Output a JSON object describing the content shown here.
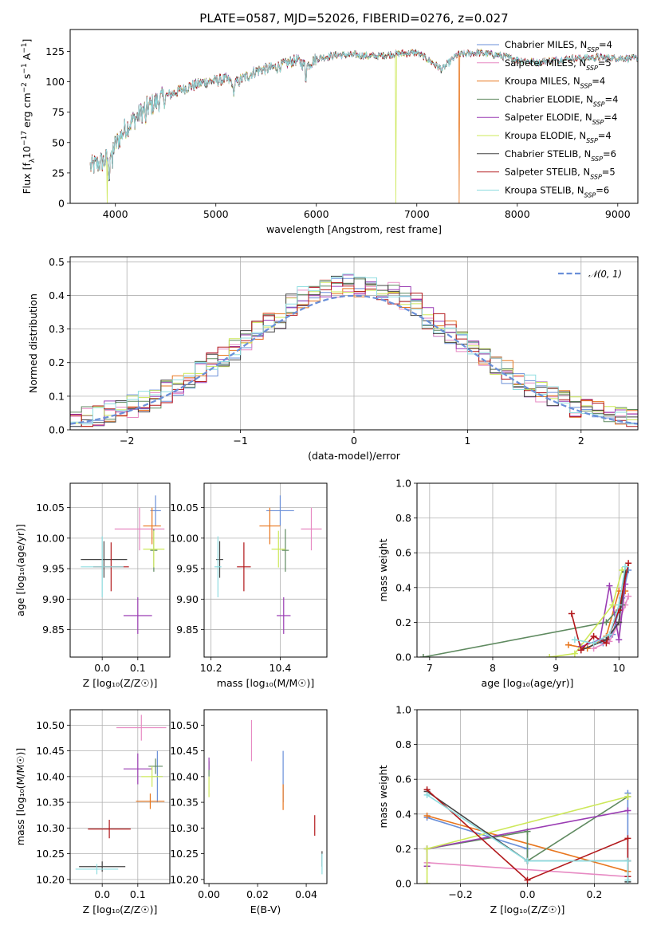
{
  "colors": {
    "Chabrier MILES": "#6a8fd8",
    "Salpeter MILES": "#e78ac3",
    "Kroupa MILES": "#e8761e",
    "Chabrier ELODIE": "#5f8a60",
    "Salpeter ELODIE": "#9a3cb3",
    "Kroupa ELODIE": "#cde85a",
    "Chabrier STELIB": "#444444",
    "Salpeter STELIB": "#b2181b",
    "Kroupa STELIB": "#8fdde0"
  },
  "chart_data": [
    {
      "id": "spectrum",
      "type": "line",
      "title": "PLATE=0587, MJD=52026, FIBERID=0276, z=0.027",
      "xlabel": "wavelength [Angstrom, rest frame]",
      "ylabel_parts": [
        "Flux [f",
        "λ",
        "10",
        "−17",
        " erg cm",
        "−2",
        " s",
        "−1",
        " A",
        "−1",
        "]"
      ],
      "xlim": [
        3550,
        9200
      ],
      "ylim": [
        0,
        143
      ],
      "xticks": [
        4000,
        5000,
        6000,
        7000,
        8000,
        9000
      ],
      "yticks": [
        0,
        25,
        50,
        75,
        100,
        125
      ],
      "grid": false,
      "legend_loc": "upper right",
      "legend": [
        {
          "name": "Chabrier MILES",
          "n": "4"
        },
        {
          "name": "Salpeter MILES",
          "n": "5"
        },
        {
          "name": "Kroupa MILES",
          "n": "4"
        },
        {
          "name": "Chabrier ELODIE",
          "n": "4"
        },
        {
          "name": "Salpeter ELODIE",
          "n": "4"
        },
        {
          "name": "Kroupa ELODIE",
          "n": "4"
        },
        {
          "name": "Chabrier STELIB",
          "n": "6"
        },
        {
          "name": "Salpeter STELIB",
          "n": "5"
        },
        {
          "name": "Kroupa STELIB",
          "n": "6"
        }
      ],
      "legend_sub": "SSP",
      "legend_prefix": "N",
      "continuum": [
        [
          3750,
          30
        ],
        [
          3900,
          35
        ],
        [
          4000,
          48
        ],
        [
          4100,
          62
        ],
        [
          4300,
          78
        ],
        [
          4500,
          88
        ],
        [
          4700,
          95
        ],
        [
          4900,
          100
        ],
        [
          5100,
          102
        ],
        [
          5200,
          99
        ],
        [
          5400,
          109
        ],
        [
          5600,
          112
        ],
        [
          5800,
          118
        ],
        [
          5900,
          113
        ],
        [
          6000,
          119
        ],
        [
          6200,
          122
        ],
        [
          6400,
          122
        ],
        [
          6600,
          121
        ],
        [
          6800,
          123
        ],
        [
          7000,
          124
        ],
        [
          7100,
          119
        ],
        [
          7250,
          110
        ],
        [
          7400,
          122
        ],
        [
          7600,
          124
        ],
        [
          7800,
          122
        ],
        [
          8000,
          118
        ],
        [
          8200,
          116
        ],
        [
          8500,
          119
        ],
        [
          8800,
          120
        ],
        [
          9200,
          119
        ]
      ],
      "drops": [
        {
          "series": "Kroupa ELODIE",
          "x": 3920
        },
        {
          "series": "Kroupa ELODIE",
          "x": 6790
        },
        {
          "series": "Kroupa MILES",
          "x": 7420
        }
      ]
    },
    {
      "id": "residuals",
      "type": "histogram",
      "xlabel": "(data-model)/error",
      "ylabel": "Normed distribution",
      "xlim": [
        -2.5,
        2.5
      ],
      "ylim": [
        0,
        0.515
      ],
      "xticks": [
        -2,
        -1,
        0,
        1,
        2
      ],
      "yticks": [
        0.0,
        0.1,
        0.2,
        0.3,
        0.4,
        0.5
      ],
      "grid": true,
      "legend_loc": "upper right",
      "reference": {
        "name": "𝒩(0, 1)",
        "mean": 0,
        "sigma": 1,
        "color": "#6a8fd8"
      },
      "bins": [
        -2.5,
        2.5,
        50
      ]
    },
    {
      "id": "age-vs-Z",
      "type": "errorbar",
      "xlabel": "Z [log₁₀(Z/Z☉)]",
      "ylabel": "age  [log₁₀(age/yr)]",
      "xlim": [
        -0.09,
        0.19
      ],
      "ylim": [
        9.805,
        10.09
      ],
      "xticks": [
        0.0,
        0.1
      ],
      "yticks": [
        9.85,
        9.9,
        9.95,
        10.0,
        10.05
      ],
      "grid": true,
      "points": [
        {
          "series": "Chabrier MILES",
          "x": 0.15,
          "xerr": 0.015,
          "y": 10.045,
          "yerr": 0.025
        },
        {
          "series": "Salpeter MILES",
          "x": 0.105,
          "xerr": 0.07,
          "y": 10.015,
          "yerr": 0.035
        },
        {
          "series": "Kroupa MILES",
          "x": 0.14,
          "xerr": 0.025,
          "y": 10.02,
          "yerr": 0.03
        },
        {
          "series": "Chabrier ELODIE",
          "x": 0.145,
          "xerr": 0.01,
          "y": 9.98,
          "yerr": 0.035
        },
        {
          "series": "Salpeter ELODIE",
          "x": 0.1,
          "xerr": 0.04,
          "y": 9.873,
          "yerr": 0.03
        },
        {
          "series": "Kroupa ELODIE",
          "x": 0.145,
          "xerr": 0.03,
          "y": 9.982,
          "yerr": 0.03
        },
        {
          "series": "Chabrier STELIB",
          "x": 0.005,
          "xerr": 0.065,
          "y": 9.965,
          "yerr": 0.03
        },
        {
          "series": "Salpeter STELIB",
          "x": 0.025,
          "xerr": 0.05,
          "y": 9.953,
          "yerr": 0.04
        },
        {
          "series": "Kroupa STELIB",
          "x": 0.0,
          "xerr": 0.06,
          "y": 9.953,
          "yerr": 0.05
        }
      ]
    },
    {
      "id": "age-vs-mass",
      "type": "errorbar",
      "xlabel": "mass [log₁₀(M/M☉)]",
      "ylabel": "",
      "xlim": [
        10.18,
        10.535
      ],
      "ylim": [
        9.805,
        10.09
      ],
      "xticks": [
        10.2,
        10.4
      ],
      "yticks": [
        9.85,
        9.9,
        9.95,
        10.0,
        10.05
      ],
      "grid": true,
      "points": [
        {
          "series": "Chabrier MILES",
          "x": 10.4,
          "xerr": 0.04,
          "y": 10.045,
          "yerr": 0.025
        },
        {
          "series": "Salpeter MILES",
          "x": 10.49,
          "xerr": 0.03,
          "y": 10.015,
          "yerr": 0.035
        },
        {
          "series": "Kroupa MILES",
          "x": 10.37,
          "xerr": 0.03,
          "y": 10.02,
          "yerr": 0.03
        },
        {
          "series": "Chabrier ELODIE",
          "x": 10.415,
          "xerr": 0.01,
          "y": 9.98,
          "yerr": 0.035
        },
        {
          "series": "Salpeter ELODIE",
          "x": 10.41,
          "xerr": 0.02,
          "y": 9.873,
          "yerr": 0.03
        },
        {
          "series": "Kroupa ELODIE",
          "x": 10.395,
          "xerr": 0.02,
          "y": 9.982,
          "yerr": 0.03
        },
        {
          "series": "Chabrier STELIB",
          "x": 10.225,
          "xerr": 0.01,
          "y": 9.965,
          "yerr": 0.03
        },
        {
          "series": "Salpeter STELIB",
          "x": 10.295,
          "xerr": 0.02,
          "y": 9.953,
          "yerr": 0.04
        },
        {
          "series": "Kroupa STELIB",
          "x": 10.22,
          "xerr": 0.01,
          "y": 9.953,
          "yerr": 0.05
        }
      ]
    },
    {
      "id": "mass-weight-vs-age",
      "type": "line",
      "xlabel": "age  [log₁₀(age/yr)]",
      "ylabel": "mass weight",
      "xlim": [
        6.8,
        10.3
      ],
      "ylim": [
        0,
        1
      ],
      "xticks": [
        7,
        8,
        9,
        10
      ],
      "yticks": [
        0.0,
        0.2,
        0.4,
        0.6,
        0.8,
        1.0
      ],
      "grid": true,
      "series": [
        {
          "name": "Chabrier MILES",
          "x": [
            9.75,
            9.9,
            10.05,
            10.15
          ],
          "y": [
            0.08,
            0.13,
            0.34,
            0.5
          ]
        },
        {
          "name": "Salpeter MILES",
          "x": [
            9.6,
            9.85,
            10.0,
            10.1,
            10.15
          ],
          "y": [
            0.05,
            0.09,
            0.2,
            0.3,
            0.35
          ]
        },
        {
          "name": "Kroupa MILES",
          "x": [
            9.2,
            9.5,
            9.8,
            10.0,
            10.1
          ],
          "y": [
            0.07,
            0.05,
            0.12,
            0.38,
            0.38
          ]
        },
        {
          "name": "Chabrier ELODIE",
          "x": [
            6.9,
            9.8,
            10.05,
            10.1
          ],
          "y": [
            0.0,
            0.2,
            0.3,
            0.5
          ]
        },
        {
          "name": "Salpeter ELODIE",
          "x": [
            9.4,
            9.7,
            9.85,
            10.0,
            10.1
          ],
          "y": [
            0.06,
            0.1,
            0.41,
            0.1,
            0.42
          ]
        },
        {
          "name": "Kroupa ELODIE",
          "x": [
            8.9,
            9.3,
            9.9,
            10.05
          ],
          "y": [
            0.0,
            0.02,
            0.3,
            0.5
          ]
        },
        {
          "name": "Chabrier STELIB",
          "x": [
            9.4,
            9.8,
            10.0,
            10.1
          ],
          "y": [
            0.04,
            0.1,
            0.2,
            0.49
          ]
        },
        {
          "name": "Salpeter STELIB",
          "x": [
            9.25,
            9.4,
            9.6,
            9.8,
            10.0,
            10.15
          ],
          "y": [
            0.25,
            0.04,
            0.12,
            0.08,
            0.27,
            0.54
          ]
        },
        {
          "name": "Kroupa STELIB",
          "x": [
            9.3,
            9.6,
            9.85,
            10.0,
            10.1
          ],
          "y": [
            0.1,
            0.08,
            0.13,
            0.3,
            0.52
          ]
        }
      ]
    },
    {
      "id": "mass-vs-Z",
      "type": "errorbar",
      "xlabel": "Z [log₁₀(Z/Z☉)]",
      "ylabel": "mass [log₁₀(M/M☉)]",
      "xlim": [
        -0.09,
        0.19
      ],
      "ylim": [
        10.192,
        10.53
      ],
      "xticks": [
        0.0,
        0.1
      ],
      "yticks": [
        10.2,
        10.25,
        10.3,
        10.35,
        10.4,
        10.45,
        10.5
      ],
      "grid": true,
      "points": [
        {
          "series": "Chabrier MILES",
          "x": 0.155,
          "xerr": 0.015,
          "y": 10.4,
          "yerr": 0.05
        },
        {
          "series": "Salpeter MILES",
          "x": 0.11,
          "xerr": 0.07,
          "y": 10.495,
          "yerr": 0.025
        },
        {
          "series": "Kroupa MILES",
          "x": 0.135,
          "xerr": 0.04,
          "y": 10.352,
          "yerr": 0.015
        },
        {
          "series": "Chabrier ELODIE",
          "x": 0.15,
          "xerr": 0.02,
          "y": 10.42,
          "yerr": 0.015
        },
        {
          "series": "Salpeter ELODIE",
          "x": 0.1,
          "xerr": 0.04,
          "y": 10.415,
          "yerr": 0.03
        },
        {
          "series": "Kroupa ELODIE",
          "x": 0.14,
          "xerr": 0.03,
          "y": 10.4,
          "yerr": 0.02
        },
        {
          "series": "Chabrier STELIB",
          "x": 0.0,
          "xerr": 0.065,
          "y": 10.225,
          "yerr": 0.01
        },
        {
          "series": "Salpeter STELIB",
          "x": 0.02,
          "xerr": 0.06,
          "y": 10.298,
          "yerr": 0.018
        },
        {
          "series": "Kroupa STELIB",
          "x": -0.015,
          "xerr": 0.06,
          "y": 10.22,
          "yerr": 0.01
        }
      ]
    },
    {
      "id": "mass-vs-EBV",
      "type": "errorbar",
      "xlabel": "E(B-V)",
      "ylabel": "",
      "xlim": [
        -0.002,
        0.0485
      ],
      "ylim": [
        10.192,
        10.53
      ],
      "xticks": [
        0.0,
        0.02,
        0.04
      ],
      "yticks": [
        10.2,
        10.25,
        10.3,
        10.35,
        10.4,
        10.45,
        10.5
      ],
      "grid": false,
      "points": [
        {
          "series": "Chabrier MILES",
          "x": 0.0305,
          "xerr": 0,
          "y": 10.4,
          "yerr": 0.05
        },
        {
          "series": "Salpeter MILES",
          "x": 0.0175,
          "xerr": 0,
          "y": 10.47,
          "yerr": 0.04
        },
        {
          "series": "Kroupa MILES",
          "x": 0.0305,
          "xerr": 0,
          "y": 10.36,
          "yerr": 0.025
        },
        {
          "series": "Chabrier ELODIE",
          "x": 0.0,
          "xerr": 0,
          "y": 10.415,
          "yerr": 0.015
        },
        {
          "series": "Salpeter ELODIE",
          "x": 0.0,
          "xerr": 0,
          "y": 10.425,
          "yerr": 0.012
        },
        {
          "series": "Kroupa ELODIE",
          "x": 0.0,
          "xerr": 0,
          "y": 10.38,
          "yerr": 0.02
        },
        {
          "series": "Chabrier STELIB",
          "x": 0.0465,
          "xerr": 0,
          "y": 10.24,
          "yerr": 0.015
        },
        {
          "series": "Salpeter STELIB",
          "x": 0.0435,
          "xerr": 0,
          "y": 10.305,
          "yerr": 0.02
        },
        {
          "series": "Kroupa STELIB",
          "x": 0.0465,
          "xerr": 0,
          "y": 10.23,
          "yerr": 0.02
        }
      ]
    },
    {
      "id": "mass-weight-vs-Z",
      "type": "line",
      "xlabel": "Z [log₁₀(Z/Z☉)]",
      "ylabel": "mass weight",
      "xlim": [
        -0.33,
        0.33
      ],
      "ylim": [
        0,
        1
      ],
      "xticks": [
        -0.2,
        0.0,
        0.2
      ],
      "yticks": [
        0.0,
        0.2,
        0.4,
        0.6,
        0.8,
        1.0
      ],
      "grid": true,
      "series": [
        {
          "name": "Chabrier MILES",
          "x": [
            -0.3,
            0.0,
            0.0,
            0.3,
            0.3
          ],
          "y": [
            0.38,
            0.2,
            0.13,
            0.13,
            0.52
          ]
        },
        {
          "name": "Salpeter MILES",
          "x": [
            -0.3,
            0.3,
            0.3
          ],
          "y": [
            0.12,
            0.04,
            0.13
          ]
        },
        {
          "name": "Kroupa MILES",
          "x": [
            -0.3,
            0.3,
            0.3
          ],
          "y": [
            0.39,
            0.07,
            0.13
          ]
        },
        {
          "name": "Chabrier ELODIE",
          "x": [
            -0.3,
            0.0,
            0.0,
            0.3
          ],
          "y": [
            0.2,
            0.3,
            0.13,
            0.5
          ]
        },
        {
          "name": "Salpeter ELODIE",
          "x": [
            -0.3,
            -0.3,
            0.3
          ],
          "y": [
            0.1,
            0.2,
            0.42
          ]
        },
        {
          "name": "Kroupa ELODIE",
          "x": [
            -0.3,
            -0.3,
            0.3
          ],
          "y": [
            0.0,
            0.2,
            0.5
          ]
        },
        {
          "name": "Chabrier STELIB",
          "x": [
            -0.3,
            0.0,
            0.3,
            0.3
          ],
          "y": [
            0.53,
            0.13,
            0.13,
            0.01
          ]
        },
        {
          "name": "Salpeter STELIB",
          "x": [
            -0.3,
            0.0,
            0.3,
            0.3
          ],
          "y": [
            0.54,
            0.02,
            0.26,
            0.04
          ]
        },
        {
          "name": "Kroupa STELIB",
          "x": [
            -0.3,
            0.0,
            0.3,
            0.3
          ],
          "y": [
            0.51,
            0.13,
            0.13,
            0.02
          ]
        }
      ]
    }
  ]
}
